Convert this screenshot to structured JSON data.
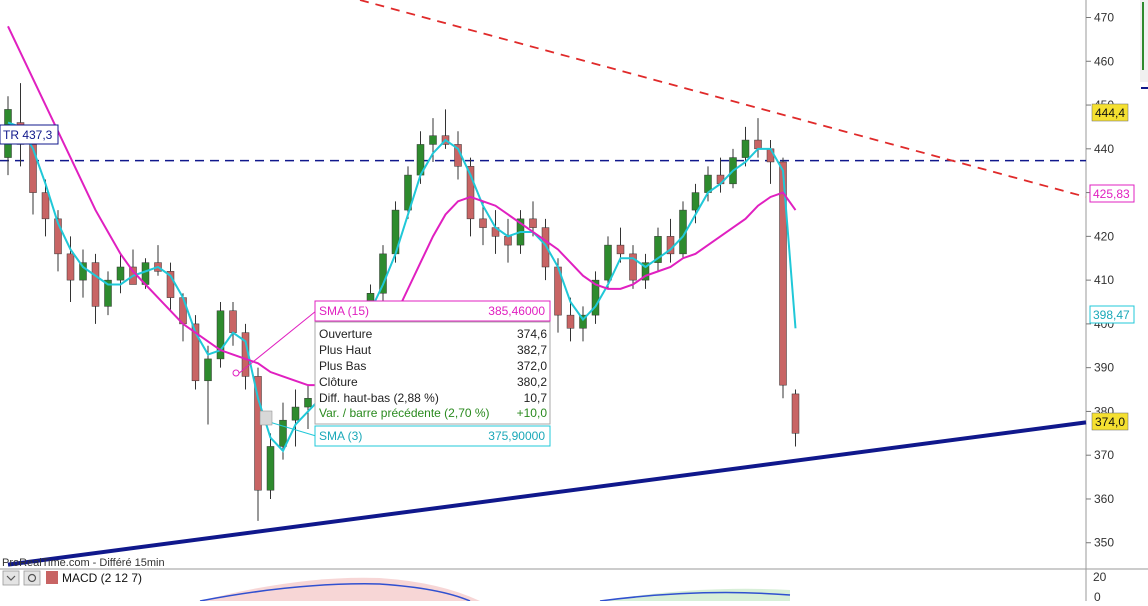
{
  "colors": {
    "background": "#ffffff",
    "candle_up": "#2e8b2e",
    "candle_down": "#c86464",
    "wick": "#333333",
    "sma15": "#e020c0",
    "sma3": "#20c8d8",
    "support_line": "#10188c",
    "resistance_line": "#e02a2a",
    "horizontal_line": "#10188c",
    "price_badge": "#f5e030"
  },
  "footer": {
    "source_text": "ProRealTime.com - Différé 15min",
    "indicator_label": "MACD (2 12 7)",
    "macd_axis_zero": "0",
    "upper_axis_20": "20"
  },
  "price_labels": {
    "tr_line": "TR 437,3",
    "badge_444": "444,4",
    "badge_sma15": "425,83",
    "badge_sma3": "398,47",
    "badge_last": "374,0"
  },
  "tooltip": {
    "sma15_label": "SMA (15)",
    "sma15_value": "385,46000",
    "sma3_label": "SMA (3)",
    "sma3_value": "375,90000",
    "rows": [
      {
        "label": "Ouverture",
        "value": "374,6"
      },
      {
        "label": "Plus Haut",
        "value": "382,7"
      },
      {
        "label": "Plus Bas",
        "value": "372,0"
      },
      {
        "label": "Clôture",
        "value": "380,2"
      },
      {
        "label": "Diff. haut-bas (2,88 %)",
        "value": "10,7"
      }
    ],
    "var_label": "Var. / barre précédente (2,70 %)",
    "var_value": "+10,0"
  },
  "chart_data": {
    "type": "candlestick",
    "y_axis": {
      "ticks": [
        "350",
        "360",
        "370",
        "380",
        "390",
        "400",
        "410",
        "420",
        "430",
        "440",
        "450",
        "460",
        "470"
      ],
      "ylim": [
        344,
        474
      ]
    },
    "horizontal_line": {
      "value": 437.3,
      "label": "TR 437,3"
    },
    "candles": [
      {
        "o": 438,
        "h": 452,
        "l": 434,
        "c": 449
      },
      {
        "o": 446,
        "h": 455,
        "l": 436,
        "c": 441
      },
      {
        "o": 441,
        "h": 443,
        "l": 425,
        "c": 430
      },
      {
        "o": 430,
        "h": 433,
        "l": 420,
        "c": 424
      },
      {
        "o": 424,
        "h": 426,
        "l": 412,
        "c": 416
      },
      {
        "o": 416,
        "h": 420,
        "l": 405,
        "c": 410
      },
      {
        "o": 410,
        "h": 417,
        "l": 406,
        "c": 414
      },
      {
        "o": 414,
        "h": 416,
        "l": 400,
        "c": 404
      },
      {
        "o": 404,
        "h": 412,
        "l": 402,
        "c": 410
      },
      {
        "o": 410,
        "h": 416,
        "l": 407,
        "c": 413
      },
      {
        "o": 413,
        "h": 417,
        "l": 409,
        "c": 409
      },
      {
        "o": 409,
        "h": 415,
        "l": 408,
        "c": 414
      },
      {
        "o": 414,
        "h": 418,
        "l": 411,
        "c": 412
      },
      {
        "o": 412,
        "h": 414,
        "l": 403,
        "c": 406
      },
      {
        "o": 406,
        "h": 407,
        "l": 396,
        "c": 400
      },
      {
        "o": 400,
        "h": 402,
        "l": 385,
        "c": 387
      },
      {
        "o": 387,
        "h": 395,
        "l": 377,
        "c": 392
      },
      {
        "o": 392,
        "h": 405,
        "l": 390,
        "c": 403
      },
      {
        "o": 403,
        "h": 405,
        "l": 395,
        "c": 398
      },
      {
        "o": 398,
        "h": 400,
        "l": 385,
        "c": 388
      },
      {
        "o": 388,
        "h": 390,
        "l": 355,
        "c": 362
      },
      {
        "o": 362,
        "h": 375,
        "l": 360,
        "c": 372
      },
      {
        "o": 372,
        "h": 382,
        "l": 369,
        "c": 378
      },
      {
        "o": 378,
        "h": 385,
        "l": 372,
        "c": 381
      },
      {
        "o": 381,
        "h": 386,
        "l": 376,
        "c": 383
      },
      {
        "o": 383,
        "h": 388,
        "l": 378,
        "c": 386
      },
      {
        "o": 386,
        "h": 395,
        "l": 383,
        "c": 392
      },
      {
        "o": 392,
        "h": 402,
        "l": 390,
        "c": 400
      },
      {
        "o": 400,
        "h": 405,
        "l": 397,
        "c": 403
      },
      {
        "o": 403,
        "h": 409,
        "l": 400,
        "c": 407
      },
      {
        "o": 407,
        "h": 418,
        "l": 405,
        "c": 416
      },
      {
        "o": 416,
        "h": 428,
        "l": 414,
        "c": 426
      },
      {
        "o": 426,
        "h": 436,
        "l": 424,
        "c": 434
      },
      {
        "o": 434,
        "h": 444,
        "l": 432,
        "c": 441
      },
      {
        "o": 441,
        "h": 447,
        "l": 437,
        "c": 443
      },
      {
        "o": 443,
        "h": 449,
        "l": 440,
        "c": 441
      },
      {
        "o": 441,
        "h": 444,
        "l": 433,
        "c": 436
      },
      {
        "o": 436,
        "h": 438,
        "l": 420,
        "c": 424
      },
      {
        "o": 424,
        "h": 428,
        "l": 418,
        "c": 422
      },
      {
        "o": 422,
        "h": 426,
        "l": 416,
        "c": 420
      },
      {
        "o": 420,
        "h": 424,
        "l": 414,
        "c": 418
      },
      {
        "o": 418,
        "h": 426,
        "l": 416,
        "c": 424
      },
      {
        "o": 424,
        "h": 428,
        "l": 420,
        "c": 422
      },
      {
        "o": 422,
        "h": 424,
        "l": 410,
        "c": 413
      },
      {
        "o": 413,
        "h": 415,
        "l": 398,
        "c": 402
      },
      {
        "o": 402,
        "h": 406,
        "l": 396,
        "c": 399
      },
      {
        "o": 399,
        "h": 404,
        "l": 396,
        "c": 402
      },
      {
        "o": 402,
        "h": 412,
        "l": 400,
        "c": 410
      },
      {
        "o": 410,
        "h": 420,
        "l": 408,
        "c": 418
      },
      {
        "o": 418,
        "h": 422,
        "l": 414,
        "c": 416
      },
      {
        "o": 416,
        "h": 418,
        "l": 408,
        "c": 410
      },
      {
        "o": 410,
        "h": 416,
        "l": 408,
        "c": 414
      },
      {
        "o": 414,
        "h": 422,
        "l": 412,
        "c": 420
      },
      {
        "o": 420,
        "h": 424,
        "l": 414,
        "c": 416
      },
      {
        "o": 416,
        "h": 428,
        "l": 415,
        "c": 426
      },
      {
        "o": 426,
        "h": 432,
        "l": 423,
        "c": 430
      },
      {
        "o": 430,
        "h": 436,
        "l": 428,
        "c": 434
      },
      {
        "o": 434,
        "h": 438,
        "l": 430,
        "c": 432
      },
      {
        "o": 432,
        "h": 440,
        "l": 431,
        "c": 438
      },
      {
        "o": 438,
        "h": 445,
        "l": 436,
        "c": 442
      },
      {
        "o": 442,
        "h": 447,
        "l": 438,
        "c": 440
      },
      {
        "o": 440,
        "h": 442,
        "l": 432,
        "c": 437
      },
      {
        "o": 437,
        "h": 438,
        "l": 383,
        "c": 386
      },
      {
        "o": 384,
        "h": 385,
        "l": 372,
        "c": 375
      }
    ],
    "series": [
      {
        "name": "SMA (3)",
        "values": [
          446,
          445,
          440,
          432,
          423,
          417,
          413,
          411,
          409,
          409,
          411,
          412,
          413,
          411,
          406,
          398,
          393,
          394,
          398,
          396,
          383,
          374,
          371,
          377,
          380,
          383,
          387,
          392,
          398,
          403,
          409,
          416,
          425,
          434,
          439,
          442,
          440,
          434,
          427,
          422,
          420,
          421,
          421,
          418,
          413,
          405,
          401,
          404,
          409,
          415,
          415,
          413,
          415,
          417,
          420,
          425,
          430,
          432,
          435,
          437,
          440,
          440,
          435,
          399
        ]
      },
      {
        "name": "SMA (15)",
        "values": [
          468,
          462,
          456,
          450,
          444,
          438,
          432,
          426,
          421,
          416,
          412,
          409,
          406,
          403,
          400,
          398,
          396,
          394,
          393,
          392,
          391,
          389,
          388,
          387,
          386,
          386,
          387,
          388,
          390,
          393,
          397,
          402,
          408,
          414,
          420,
          425,
          428,
          429,
          428,
          427,
          425,
          423,
          421,
          419,
          417,
          414,
          411,
          409,
          408,
          408,
          409,
          411,
          412,
          413,
          415,
          416,
          418,
          420,
          422,
          424,
          427,
          429,
          430,
          426
        ]
      }
    ],
    "trendlines": [
      {
        "name": "resistance",
        "from": [
          0,
          478
        ],
        "to": [
          76,
          429
        ],
        "style": "dashed"
      },
      {
        "name": "support",
        "from": [
          0,
          345
        ],
        "to": [
          76,
          377.5
        ],
        "style": "solid"
      }
    ]
  }
}
